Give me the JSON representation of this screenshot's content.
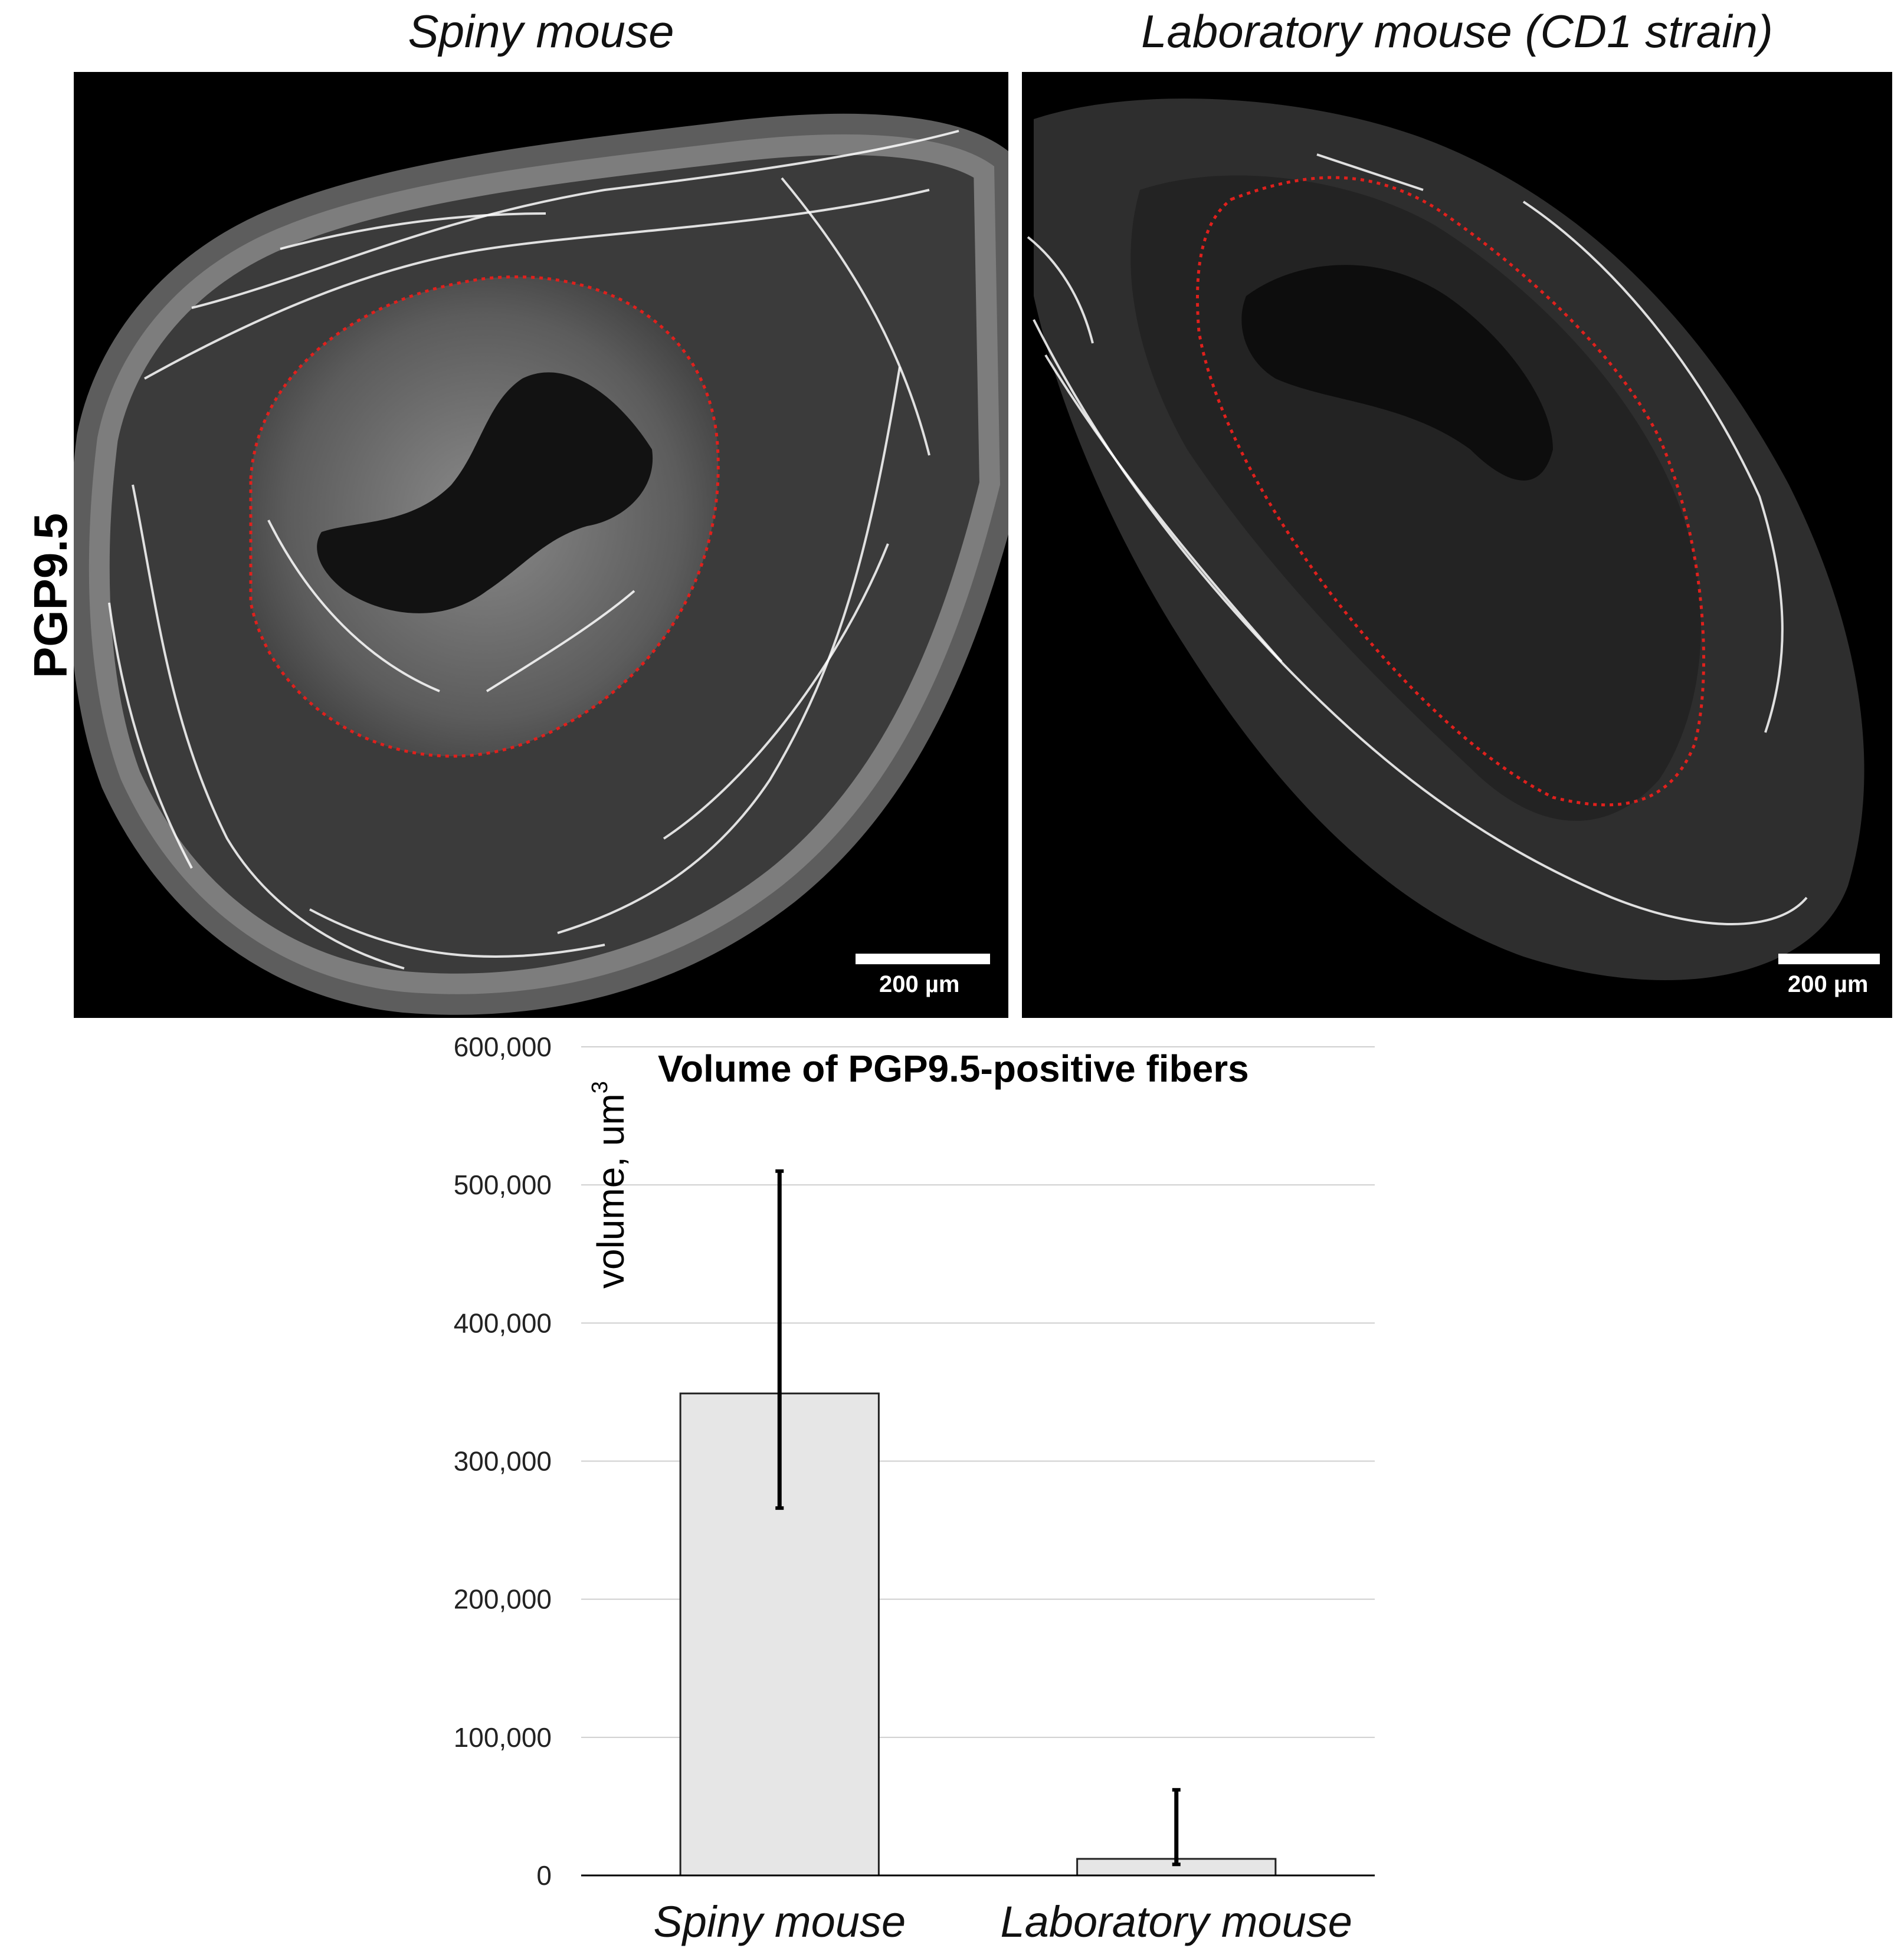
{
  "panels": {
    "left_title": "Spiny mouse",
    "right_title": "Laboratory mouse (CD1 strain)",
    "row_label": "PGP9.5",
    "scale_bar_label": "200 µm",
    "colors": {
      "background": "#000000",
      "tissue": "#4a4a4a",
      "fibers": "#ffffff",
      "outline": "#e0201c"
    }
  },
  "chart_data": {
    "type": "bar",
    "title": "Volume of PGP9.5-positive fibers",
    "ylabel": "volume, um",
    "ylabel_superscript": "3",
    "xlabel": "",
    "categories": [
      "Spiny mouse",
      "Laboratory mouse"
    ],
    "series": [
      {
        "values": [
          349000,
          12000
        ],
        "error_upper": [
          510000,
          62000
        ],
        "error_lower": [
          266000,
          8000
        ],
        "color": "#e6e6e6"
      }
    ],
    "ylim": [
      0,
      600000
    ],
    "yticks": [
      0,
      100000,
      200000,
      300000,
      400000,
      500000,
      600000
    ],
    "ytick_labels": [
      "0",
      "100,000",
      "200,000",
      "300,000",
      "400,000",
      "500,000",
      "600,000"
    ],
    "grid": true
  }
}
